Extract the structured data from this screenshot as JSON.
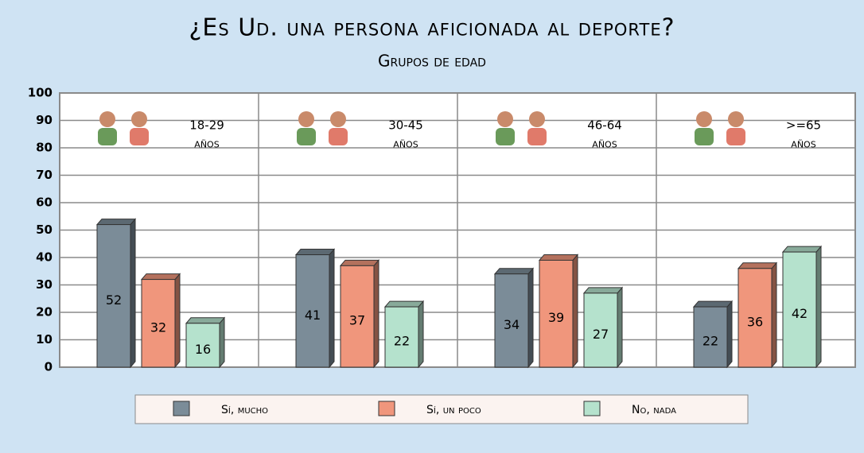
{
  "chart_data": {
    "type": "bar3d",
    "title": "¿Es Ud. una persona aficionada al deporte?",
    "subtitle": "Grupos de edad",
    "categories": [
      "18-29",
      "30-45",
      "46-64",
      ">=65"
    ],
    "category_unit": "años",
    "series": [
      {
        "name": "Sí, mucho",
        "color": "#7b8c98",
        "values": [
          52,
          41,
          34,
          22
        ]
      },
      {
        "name": "Sí, un poco",
        "color": "#f0967c",
        "values": [
          32,
          37,
          39,
          36
        ]
      },
      {
        "name": "No, nada",
        "color": "#b5e2cd",
        "values": [
          16,
          22,
          27,
          42
        ]
      }
    ],
    "ylim": [
      0,
      100
    ],
    "yticks": [
      0,
      10,
      20,
      30,
      40,
      50,
      60,
      70,
      80,
      90,
      100
    ],
    "grid": true
  }
}
